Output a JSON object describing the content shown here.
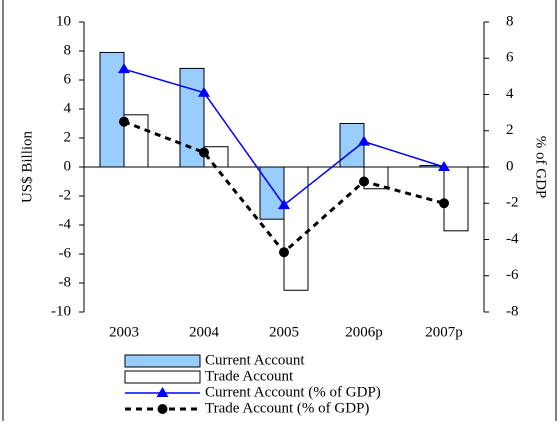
{
  "chart_data": {
    "type": "bar-line",
    "categories": [
      "2003",
      "2004",
      "2005",
      "2006p",
      "2007p"
    ],
    "y_label": "US$ Billion",
    "y2_label": "% of GDP",
    "ylim": [
      -10,
      10
    ],
    "yticks": [
      -10,
      -8,
      -6,
      -4,
      -2,
      0,
      2,
      4,
      6,
      8,
      10
    ],
    "y2lim": [
      -8,
      8
    ],
    "y2ticks": [
      -8,
      -6,
      -4,
      -2,
      0,
      2,
      4,
      6,
      8
    ],
    "series": [
      {
        "name": "Current Account",
        "type": "bar",
        "color": "#99ccff",
        "values": [
          7.9,
          6.8,
          -3.6,
          3.0,
          0.1
        ]
      },
      {
        "name": "Trade Account",
        "type": "bar",
        "color": "#ffffff",
        "values": [
          3.6,
          1.4,
          -8.5,
          -1.5,
          -4.4
        ]
      },
      {
        "name": "Current Account (% of GDP)",
        "type": "line",
        "axis": "y2",
        "color": "#0000ff",
        "marker": "triangle",
        "values": [
          5.4,
          4.1,
          -2.1,
          1.4,
          0.0
        ]
      },
      {
        "name": "Trade Account (% of GDP)",
        "type": "line",
        "axis": "y2",
        "color": "#000000",
        "marker": "circle",
        "dashed": true,
        "values": [
          2.5,
          0.8,
          -4.7,
          -0.8,
          -2.0
        ]
      }
    ]
  }
}
